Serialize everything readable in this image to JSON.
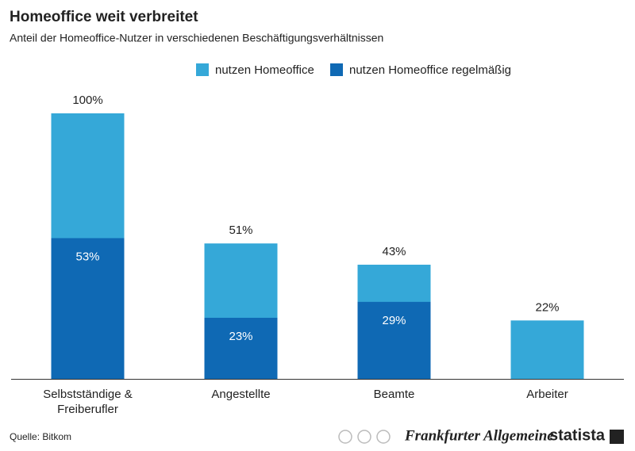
{
  "chart_data": {
    "type": "overlap-bar",
    "title": "Homeoffice weit verbreitet",
    "subtitle": "Anteil der Homeoffice-Nutzer in verschiedenen Beschäftigungsverhältnissen",
    "categories": [
      "Selbstständige & Freiberufler",
      "Angestellte",
      "Beamte",
      "Arbeiter"
    ],
    "series": [
      {
        "name": "nutzen Homeoffice",
        "color": "#35a8d8",
        "values": [
          100,
          51,
          43,
          22
        ],
        "value_labels": [
          "100%",
          "51%",
          "43%",
          "22%"
        ]
      },
      {
        "name": "nutzen Homeoffice regelmäßig",
        "color": "#0f69b4",
        "values": [
          53,
          23,
          29,
          null
        ],
        "value_labels": [
          "53%",
          "23%",
          "29%",
          null
        ]
      }
    ],
    "ylim": [
      0,
      100
    ],
    "source": "Quelle: Bitkom",
    "publisher": "Frankfurter Allgemeine",
    "brand": "statista"
  }
}
